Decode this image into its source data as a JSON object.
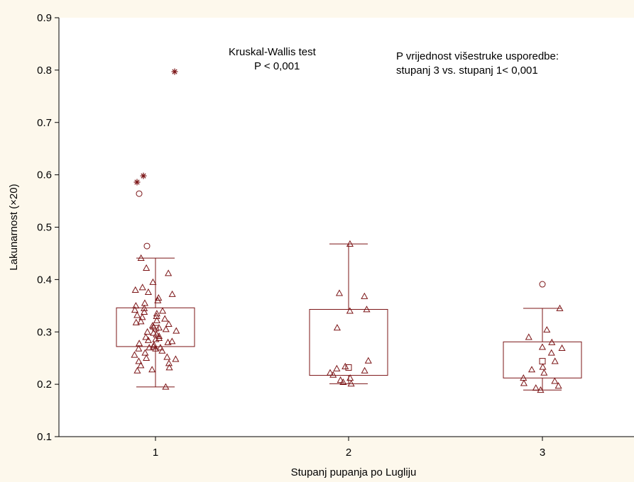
{
  "colors": {
    "background": "#fdf8ec",
    "plot_background": "#ffffff",
    "mark": "#7b1416",
    "axis": "#000000"
  },
  "chart_data": {
    "type": "box",
    "xlabel": "Stupanj pupanja po Lugliju",
    "ylabel": "Lakunarnost (×20)",
    "ylim": [
      0.1,
      0.9
    ],
    "yticks": [
      0.1,
      0.2,
      0.3,
      0.4,
      0.5,
      0.6,
      0.7,
      0.8,
      0.9
    ],
    "categories": [
      "1",
      "2",
      "3"
    ],
    "grid": false,
    "annotations": {
      "test_name": "Kruskal-Wallis test",
      "test_p": "P < 0,001",
      "posthoc_title": "P vrijednost višestruke usporedbe:",
      "posthoc_result": "stupanj 3 vs. stupanj 1< 0,001"
    },
    "boxes": [
      {
        "category": "1",
        "median": 0.307,
        "q1": 0.272,
        "q3": 0.346,
        "whisker_low": 0.195,
        "whisker_high": 0.441,
        "outliers": [
          0.464,
          0.564
        ],
        "extremes": [
          0.598,
          0.586,
          0.797
        ],
        "points": [
          0.195,
          0.226,
          0.228,
          0.232,
          0.236,
          0.24,
          0.244,
          0.248,
          0.25,
          0.252,
          0.256,
          0.26,
          0.264,
          0.268,
          0.268,
          0.27,
          0.27,
          0.272,
          0.275,
          0.278,
          0.28,
          0.282,
          0.284,
          0.286,
          0.288,
          0.29,
          0.292,
          0.295,
          0.298,
          0.3,
          0.302,
          0.305,
          0.308,
          0.31,
          0.312,
          0.315,
          0.318,
          0.32,
          0.322,
          0.325,
          0.328,
          0.33,
          0.332,
          0.335,
          0.338,
          0.34,
          0.342,
          0.345,
          0.35,
          0.355,
          0.36,
          0.365,
          0.372,
          0.376,
          0.38,
          0.385,
          0.395,
          0.412,
          0.422,
          0.441
        ]
      },
      {
        "category": "2",
        "median": 0.232,
        "q1": 0.217,
        "q3": 0.343,
        "whisker_low": 0.201,
        "whisker_high": 0.468,
        "outliers": [],
        "extremes": [],
        "points": [
          0.201,
          0.204,
          0.208,
          0.212,
          0.218,
          0.222,
          0.226,
          0.23,
          0.234,
          0.245,
          0.308,
          0.34,
          0.343,
          0.368,
          0.374,
          0.468
        ]
      },
      {
        "category": "3",
        "median": 0.244,
        "q1": 0.212,
        "q3": 0.281,
        "whisker_low": 0.189,
        "whisker_high": 0.345,
        "outliers": [
          0.391
        ],
        "extremes": [],
        "points": [
          0.189,
          0.193,
          0.197,
          0.202,
          0.206,
          0.212,
          0.222,
          0.228,
          0.233,
          0.244,
          0.26,
          0.269,
          0.271,
          0.28,
          0.29,
          0.304,
          0.345
        ]
      }
    ]
  }
}
